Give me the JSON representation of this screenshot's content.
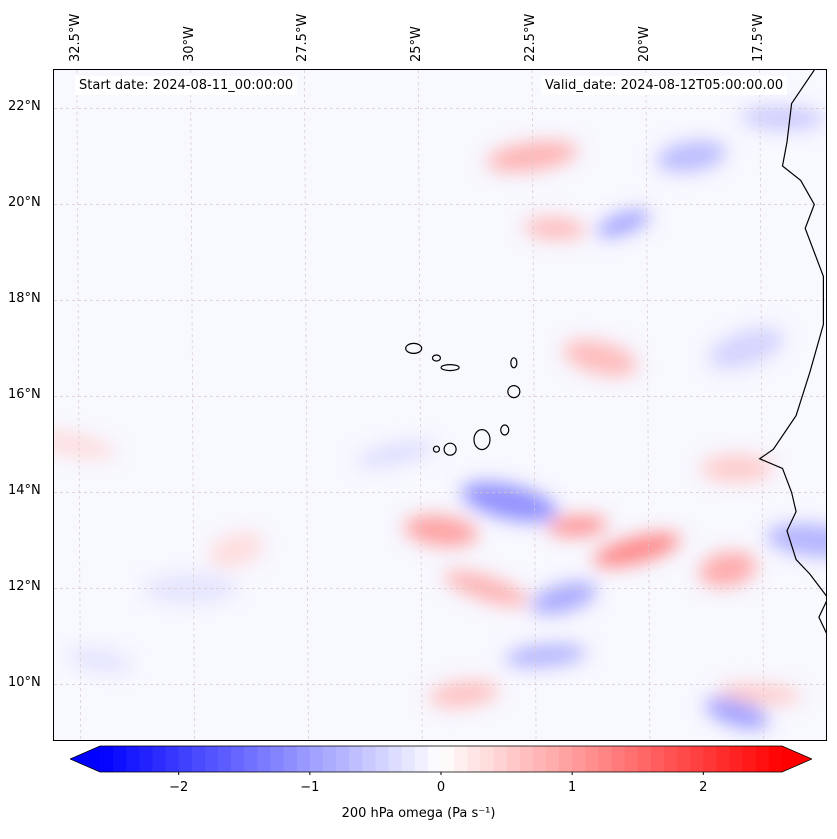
{
  "map": {
    "extent": {
      "lon_min": -33.0,
      "lon_max": -16.0,
      "lat_min": 8.8,
      "lat_max": 22.8
    },
    "background_color": "#f8f8ff",
    "gridline_color": "#d8c8c8",
    "coastline_color": "#000000",
    "lon_ticks": [
      {
        "lon": -32.5,
        "label": "32.5°W"
      },
      {
        "lon": -30.0,
        "label": "30°W"
      },
      {
        "lon": -27.5,
        "label": "27.5°W"
      },
      {
        "lon": -25.0,
        "label": "25°W"
      },
      {
        "lon": -22.5,
        "label": "22.5°W"
      },
      {
        "lon": -20.0,
        "label": "20°W"
      },
      {
        "lon": -17.5,
        "label": "17.5°W"
      }
    ],
    "lat_ticks": [
      {
        "lat": 22,
        "label": "22°N"
      },
      {
        "lat": 20,
        "label": "20°N"
      },
      {
        "lat": 18,
        "label": "18°N"
      },
      {
        "lat": 16,
        "label": "16°N"
      },
      {
        "lat": 14,
        "label": "14°N"
      },
      {
        "lat": 12,
        "label": "12°N"
      },
      {
        "lat": 10,
        "label": "10°N"
      }
    ]
  },
  "annotations": {
    "start_date": "Start date: 2024-08-11_00:00:00",
    "valid_date": "Valid_date: 2024-08-12T05:00:00.00"
  },
  "colorbar": {
    "label": "200 hPa omega (Pa s⁻¹)",
    "vmin": -2.6,
    "vmax": 2.6,
    "negative_color": "#0000ff",
    "positive_color": "#ff0000",
    "extend": "both",
    "ticks": [
      {
        "value": -2,
        "label": "−2"
      },
      {
        "value": -1,
        "label": "−1"
      },
      {
        "value": 0,
        "label": "0"
      },
      {
        "value": 1,
        "label": "1"
      },
      {
        "value": 2,
        "label": "2"
      }
    ]
  },
  "features": {
    "blue_patches": [
      {
        "lon": -20.5,
        "lat": 19.6,
        "value": -1.1
      },
      {
        "lon": -19.0,
        "lat": 21.0,
        "value": -0.8
      },
      {
        "lon": -17.0,
        "lat": 21.8,
        "value": -0.6
      },
      {
        "lon": -23.0,
        "lat": 13.8,
        "value": -1.3
      },
      {
        "lon": -21.8,
        "lat": 11.8,
        "value": -1.0
      },
      {
        "lon": -22.2,
        "lat": 10.6,
        "value": -0.9
      },
      {
        "lon": -16.3,
        "lat": 13.0,
        "value": -0.9
      },
      {
        "lon": -18.0,
        "lat": 9.4,
        "value": -1.1
      },
      {
        "lon": -25.5,
        "lat": 14.8,
        "value": -0.4
      },
      {
        "lon": -30.0,
        "lat": 12.0,
        "value": -0.3
      },
      {
        "lon": -32.0,
        "lat": 10.5,
        "value": -0.3
      },
      {
        "lon": -17.8,
        "lat": 17.0,
        "value": -0.5
      }
    ],
    "red_patches": [
      {
        "lon": -22.5,
        "lat": 21.0,
        "value": 0.9
      },
      {
        "lon": -22.0,
        "lat": 19.5,
        "value": 0.8
      },
      {
        "lon": -21.0,
        "lat": 16.8,
        "value": 0.8
      },
      {
        "lon": -20.2,
        "lat": 12.8,
        "value": 1.4
      },
      {
        "lon": -21.5,
        "lat": 13.3,
        "value": 1.3
      },
      {
        "lon": -24.5,
        "lat": 13.2,
        "value": 1.1
      },
      {
        "lon": -23.5,
        "lat": 12.0,
        "value": 0.9
      },
      {
        "lon": -18.2,
        "lat": 12.4,
        "value": 1.0
      },
      {
        "lon": -18.0,
        "lat": 14.5,
        "value": 0.6
      },
      {
        "lon": -32.6,
        "lat": 15.0,
        "value": 0.4
      },
      {
        "lon": -29.0,
        "lat": 12.8,
        "value": 0.4
      },
      {
        "lon": -24.0,
        "lat": 9.8,
        "value": 0.7
      },
      {
        "lon": -17.5,
        "lat": 9.8,
        "value": 0.6
      }
    ]
  }
}
